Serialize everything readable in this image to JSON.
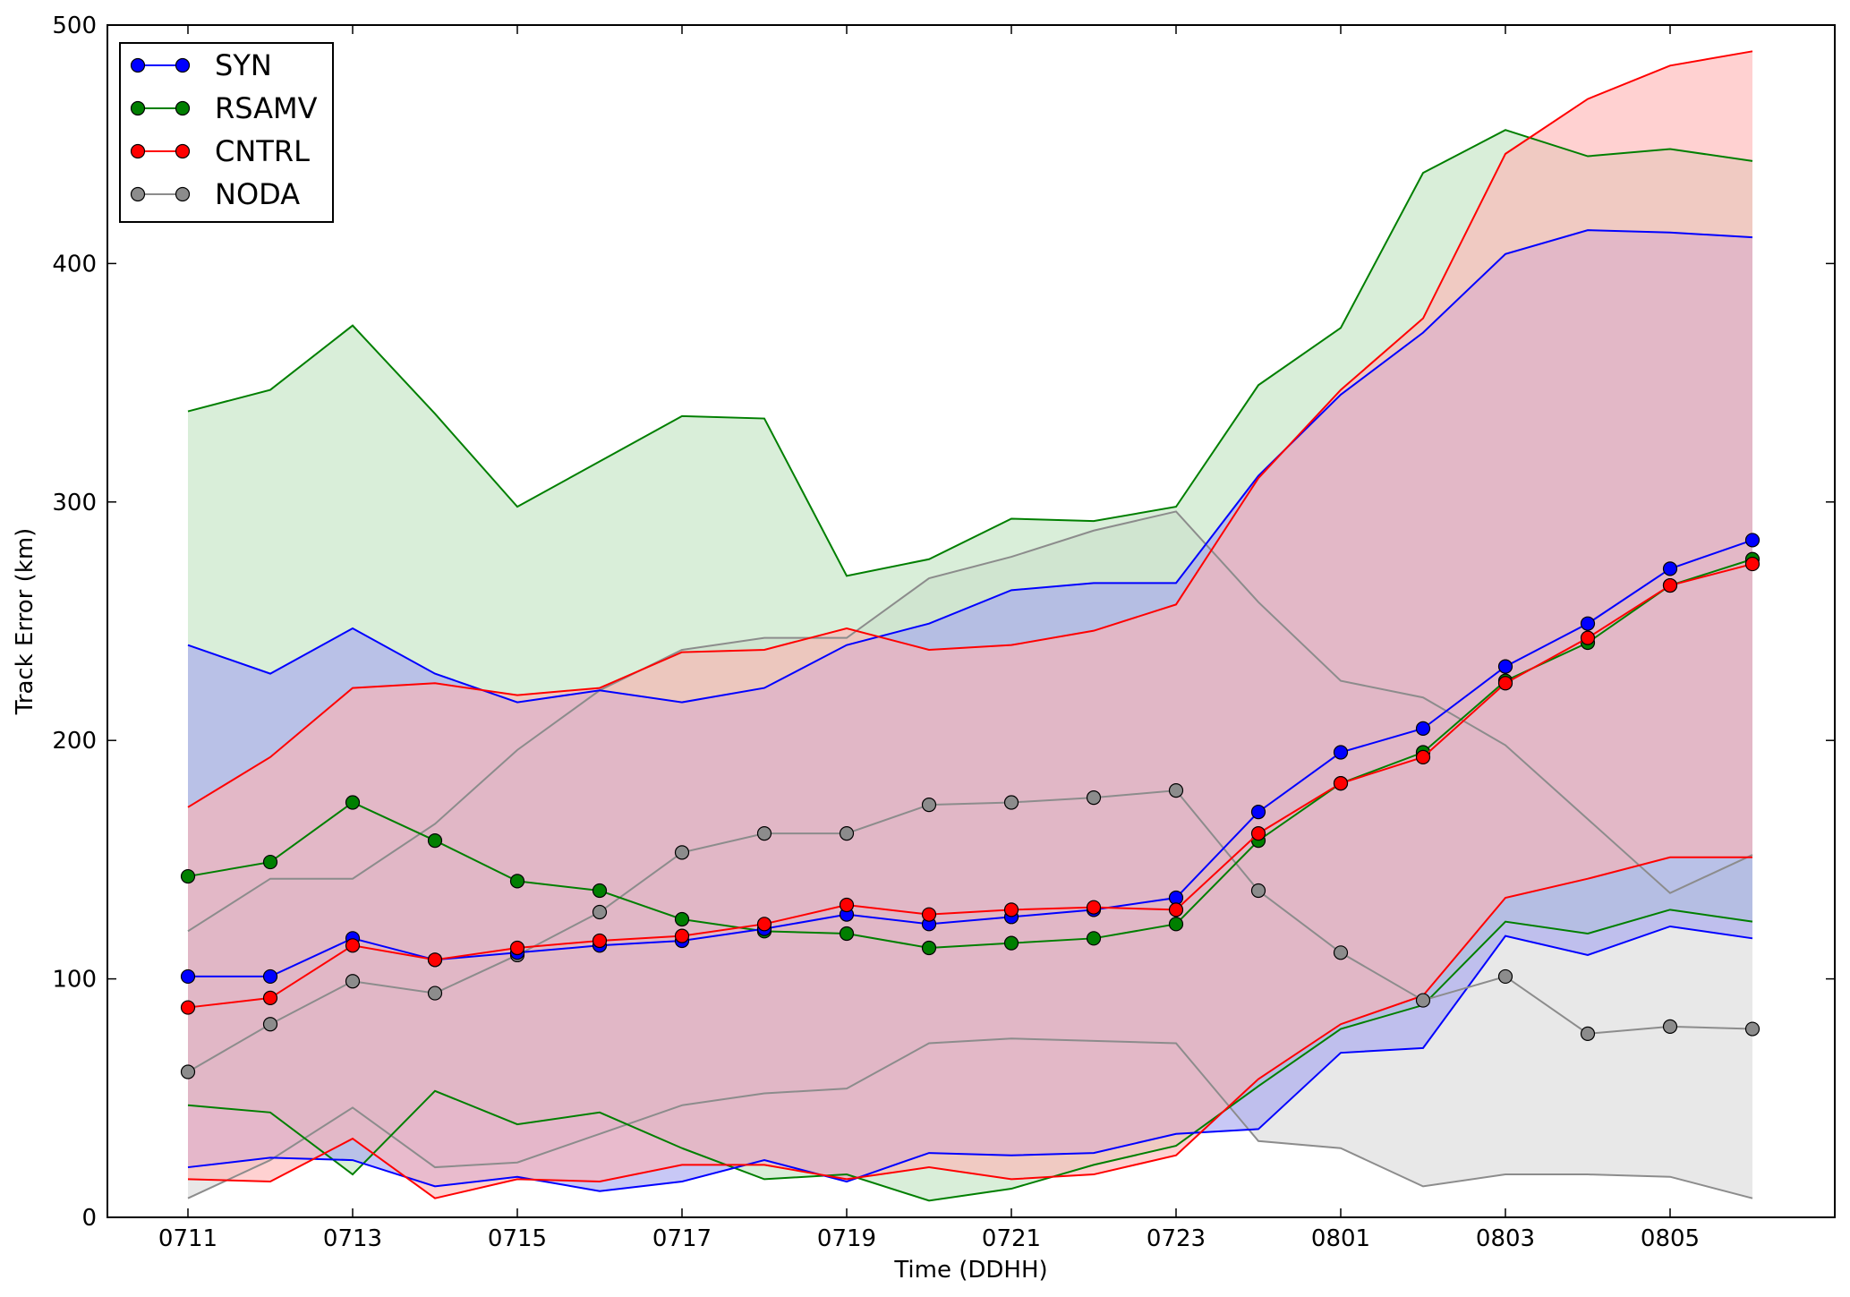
{
  "chart_data": {
    "type": "line",
    "xlabel": "Time (DDHH)",
    "ylabel": "Track Error (km)",
    "x": [
      "0711",
      "0712",
      "0713",
      "0714",
      "0715",
      "0716",
      "0717",
      "0718",
      "0719",
      "0720",
      "0721",
      "0722",
      "0723",
      "0800",
      "0801",
      "0802",
      "0803",
      "0804",
      "0805",
      "0806"
    ],
    "xticks": [
      "0711",
      "0713",
      "0715",
      "0717",
      "0719",
      "0721",
      "0723",
      "0801",
      "0803",
      "0805"
    ],
    "yticks": [
      "0",
      "100",
      "200",
      "300",
      "400",
      "500"
    ],
    "ylim": [
      0,
      500
    ],
    "grid": false,
    "legend_position": "top-left",
    "series": [
      {
        "name": "NODA",
        "color": "#8c8c8c",
        "fill": "#d9d9d9",
        "values": [
          61,
          81,
          99,
          94,
          110,
          128,
          153,
          161,
          161,
          173,
          174,
          176,
          179,
          137,
          111,
          91,
          101,
          77,
          80,
          79
        ],
        "upper": [
          120,
          142,
          142,
          165,
          196,
          221,
          238,
          243,
          243,
          268,
          277,
          288,
          296,
          258,
          225,
          218,
          198,
          167,
          136,
          152
        ],
        "lower": [
          8,
          24,
          46,
          21,
          23,
          35,
          47,
          52,
          54,
          73,
          75,
          74,
          73,
          32,
          29,
          13,
          18,
          18,
          17,
          8
        ]
      },
      {
        "name": "RSAMV",
        "color": "#007f00",
        "fill": "#bfe3bf",
        "values": [
          143,
          149,
          174,
          158,
          141,
          137,
          125,
          120,
          119,
          113,
          115,
          117,
          123,
          158,
          182,
          195,
          225,
          241,
          265,
          276
        ],
        "upper": [
          338,
          347,
          374,
          337,
          298,
          317,
          336,
          335,
          269,
          276,
          293,
          292,
          298,
          349,
          373,
          438,
          456,
          445,
          448,
          443
        ],
        "lower": [
          47,
          44,
          18,
          53,
          39,
          44,
          29,
          16,
          18,
          7,
          12,
          22,
          30,
          55,
          79,
          89,
          124,
          119,
          129,
          124
        ]
      },
      {
        "name": "SYN",
        "color": "#0000ff",
        "fill": "#a3a3f0",
        "values": [
          101,
          101,
          117,
          108,
          111,
          114,
          116,
          121,
          127,
          123,
          126,
          129,
          134,
          170,
          195,
          205,
          231,
          249,
          272,
          284
        ],
        "upper": [
          240,
          228,
          247,
          228,
          216,
          221,
          216,
          222,
          240,
          249,
          263,
          266,
          266,
          311,
          345,
          371,
          404,
          414,
          413,
          411
        ],
        "lower": [
          21,
          25,
          24,
          13,
          17,
          11,
          15,
          24,
          15,
          27,
          26,
          27,
          35,
          37,
          69,
          71,
          118,
          110,
          122,
          117
        ]
      },
      {
        "name": "CNTRL",
        "color": "#ff0000",
        "fill": "#ffb3b3",
        "values": [
          88,
          92,
          114,
          108,
          113,
          116,
          118,
          123,
          131,
          127,
          129,
          130,
          129,
          161,
          182,
          193,
          224,
          243,
          265,
          274
        ],
        "upper": [
          172,
          193,
          222,
          224,
          219,
          222,
          237,
          238,
          247,
          238,
          240,
          246,
          257,
          310,
          347,
          377,
          446,
          469,
          483,
          489
        ],
        "lower": [
          16,
          15,
          33,
          8,
          16,
          15,
          22,
          22,
          16,
          21,
          16,
          18,
          26,
          58,
          81,
          93,
          134,
          142,
          151,
          151
        ]
      }
    ],
    "legend_order": [
      "SYN",
      "RSAMV",
      "CNTRL",
      "NODA"
    ]
  }
}
